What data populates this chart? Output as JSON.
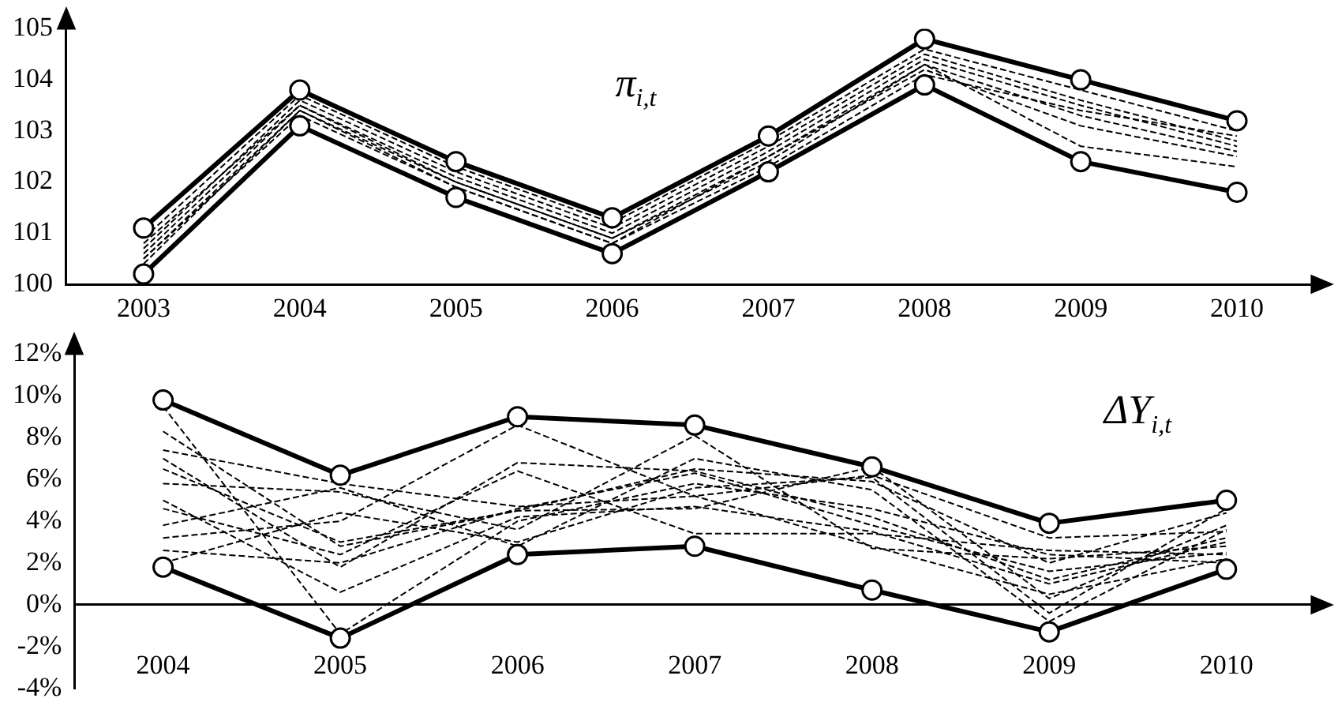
{
  "chart_data": [
    {
      "type": "line",
      "categories": [
        "2003",
        "2004",
        "2005",
        "2006",
        "2007",
        "2008",
        "2009",
        "2010"
      ],
      "ylim": [
        100,
        105
      ],
      "yticks": [
        100,
        101,
        102,
        103,
        104,
        105
      ],
      "grid": false,
      "legend": false,
      "annotations": [
        "π$_{i,t}$"
      ],
      "series": [
        {
          "color": "#000000",
          "marker": "circle",
          "line_style": "solid",
          "values": [
            101.1,
            103.8,
            102.4,
            101.3,
            102.9,
            104.8,
            104.0,
            103.2
          ]
        },
        {
          "color": "#000000",
          "marker": "circle",
          "line_style": "solid",
          "values": [
            100.2,
            103.1,
            101.7,
            100.6,
            102.2,
            103.9,
            102.4,
            101.8
          ]
        },
        {
          "color": "#000000",
          "marker": "none",
          "line_style": "dashed",
          "values": [
            100.9,
            103.7,
            102.3,
            101.2,
            102.8,
            104.6,
            103.8,
            103.0
          ]
        },
        {
          "color": "#000000",
          "marker": "none",
          "line_style": "dashed",
          "values": [
            100.7,
            103.6,
            102.2,
            101.1,
            102.7,
            104.5,
            103.6,
            102.8
          ]
        },
        {
          "color": "#000000",
          "marker": "none",
          "line_style": "dashed",
          "values": [
            100.6,
            103.5,
            102.1,
            101.0,
            102.6,
            104.4,
            103.5,
            102.7
          ]
        },
        {
          "color": "#000000",
          "marker": "none",
          "line_style": "dashed",
          "values": [
            100.5,
            103.4,
            102.0,
            100.9,
            102.5,
            104.3,
            103.3,
            102.6
          ]
        },
        {
          "color": "#000000",
          "marker": "none",
          "line_style": "dashed",
          "values": [
            100.4,
            103.4,
            101.9,
            100.8,
            102.5,
            104.2,
            103.1,
            102.5
          ]
        },
        {
          "color": "#000000",
          "marker": "none",
          "line_style": "dashed",
          "values": [
            100.8,
            103.5,
            102.0,
            100.9,
            102.4,
            104.3,
            102.7,
            102.3
          ]
        },
        {
          "color": "#000000",
          "marker": "none",
          "line_style": "dashed",
          "values": [
            100.5,
            103.3,
            101.9,
            100.8,
            102.3,
            104.1,
            103.4,
            102.9
          ]
        }
      ]
    },
    {
      "type": "line",
      "categories": [
        "2004",
        "2005",
        "2006",
        "2007",
        "2008",
        "2009",
        "2010"
      ],
      "ylim": [
        -4,
        12
      ],
      "yticks": [
        {
          "value": -4,
          "label": "-4%"
        },
        {
          "value": -2,
          "label": "-2%"
        },
        {
          "value": 0,
          "label": "0%"
        },
        {
          "value": 2,
          "label": "2%"
        },
        {
          "value": 4,
          "label": "4%"
        },
        {
          "value": 6,
          "label": "6%"
        },
        {
          "value": 8,
          "label": "8%"
        },
        {
          "value": 10,
          "label": "10%"
        },
        {
          "value": 12,
          "label": "12%"
        }
      ],
      "grid": false,
      "legend": false,
      "annotations": [
        "ΔY$_{i,t}$"
      ],
      "series": [
        {
          "color": "#000000",
          "marker": "circle",
          "line_style": "solid",
          "values": [
            9.8,
            6.2,
            9.0,
            8.6,
            6.6,
            3.9,
            5.0
          ]
        },
        {
          "color": "#000000",
          "marker": "circle",
          "line_style": "solid",
          "values": [
            1.8,
            -1.6,
            2.4,
            2.8,
            0.7,
            -1.3,
            1.7
          ]
        },
        {
          "color": "#000000",
          "marker": "none",
          "line_style": "dashed",
          "values": [
            8.3,
            2.8,
            4.5,
            6.5,
            5.9,
            2.0,
            4.4
          ]
        },
        {
          "color": "#000000",
          "marker": "none",
          "line_style": "dashed",
          "values": [
            7.4,
            5.8,
            4.7,
            5.2,
            6.2,
            3.2,
            3.5
          ]
        },
        {
          "color": "#000000",
          "marker": "none",
          "line_style": "dashed",
          "values": [
            7.0,
            1.8,
            6.8,
            6.4,
            4.2,
            1.2,
            3.2
          ]
        },
        {
          "color": "#000000",
          "marker": "none",
          "line_style": "dashed",
          "values": [
            6.5,
            3.0,
            4.5,
            4.6,
            6.6,
            0.3,
            3.8
          ]
        },
        {
          "color": "#000000",
          "marker": "none",
          "line_style": "dashed",
          "values": [
            5.8,
            5.4,
            3.6,
            8.1,
            2.7,
            2.2,
            2.8
          ]
        },
        {
          "color": "#000000",
          "marker": "none",
          "line_style": "dashed",
          "values": [
            5.0,
            0.6,
            4.2,
            4.7,
            3.5,
            1.0,
            3.0
          ]
        },
        {
          "color": "#000000",
          "marker": "none",
          "line_style": "dashed",
          "values": [
            4.6,
            2.4,
            6.4,
            3.4,
            3.4,
            2.6,
            2.4
          ]
        },
        {
          "color": "#000000",
          "marker": "none",
          "line_style": "dashed",
          "values": [
            3.8,
            5.6,
            2.8,
            7.0,
            5.5,
            -0.8,
            3.6
          ]
        },
        {
          "color": "#000000",
          "marker": "none",
          "line_style": "dashed",
          "values": [
            3.2,
            4.0,
            8.6,
            5.2,
            2.8,
            0.5,
            2.2
          ]
        },
        {
          "color": "#000000",
          "marker": "none",
          "line_style": "dashed",
          "values": [
            2.6,
            2.0,
            4.6,
            6.3,
            3.8,
            1.6,
            2.5
          ]
        },
        {
          "color": "#000000",
          "marker": "none",
          "line_style": "dashed",
          "values": [
            2.0,
            4.4,
            3.0,
            5.6,
            6.1,
            -0.4,
            4.6
          ]
        },
        {
          "color": "#000000",
          "marker": "none",
          "line_style": "dashed",
          "values": [
            9.5,
            -1.4,
            4.0,
            5.8,
            4.6,
            2.4,
            2.0
          ]
        }
      ]
    }
  ]
}
